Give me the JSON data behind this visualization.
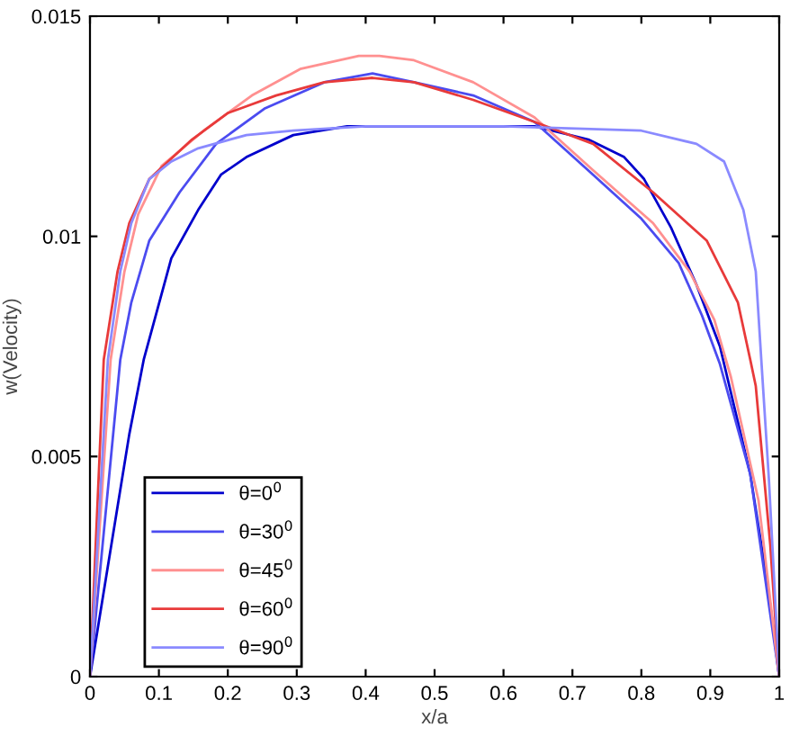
{
  "chart_data": {
    "type": "line",
    "xlabel": "x/a",
    "ylabel": "w(Velocity)",
    "xlim": [
      0,
      1
    ],
    "ylim": [
      0,
      0.015
    ],
    "xticks": [
      0,
      0.1,
      0.2,
      0.3,
      0.4,
      0.5,
      0.6,
      0.7,
      0.8,
      0.9,
      1
    ],
    "yticks": [
      0,
      0.005,
      0.01,
      0.015
    ],
    "grid": false,
    "legend": "bottom left",
    "marker": "none",
    "line_style": "solid",
    "series": [
      {
        "name": "θ=0$^{0}$",
        "color": "#0000cc",
        "x": [
          0,
          0.057,
          0.078,
          0.118,
          0.157,
          0.19,
          0.227,
          0.295,
          0.373,
          0.42,
          0.5,
          0.645,
          0.723,
          0.775,
          0.804,
          0.843,
          0.88,
          0.914,
          0.958,
          0.984,
          1
        ],
        "values": [
          0,
          0.0055,
          0.0072,
          0.0095,
          0.0106,
          0.0114,
          0.0118,
          0.0123,
          0.0125,
          0.0125,
          0.0125,
          0.0125,
          0.0122,
          0.0118,
          0.0113,
          0.0102,
          0.0089,
          0.0075,
          0.0046,
          0.002,
          0
        ]
      },
      {
        "name": "θ=30$^{0}$",
        "color": "#4b4bf0",
        "x": [
          0,
          0.044,
          0.06,
          0.086,
          0.13,
          0.183,
          0.253,
          0.34,
          0.41,
          0.47,
          0.556,
          0.645,
          0.73,
          0.8,
          0.854,
          0.888,
          0.914,
          0.958,
          1
        ],
        "values": [
          0,
          0.0072,
          0.0085,
          0.0099,
          0.011,
          0.0121,
          0.0129,
          0.0135,
          0.0137,
          0.0135,
          0.0132,
          0.0126,
          0.0114,
          0.0104,
          0.0094,
          0.0082,
          0.0071,
          0.0046,
          0
        ]
      },
      {
        "name": "θ=45$^{0}$",
        "color": "#ff9090",
        "x": [
          0,
          0.03,
          0.05,
          0.07,
          0.104,
          0.165,
          0.235,
          0.305,
          0.39,
          0.42,
          0.47,
          0.556,
          0.645,
          0.73,
          0.817,
          0.87,
          0.906,
          0.93,
          0.97,
          1
        ],
        "values": [
          0,
          0.0072,
          0.0092,
          0.0105,
          0.0116,
          0.0124,
          0.0132,
          0.0138,
          0.0141,
          0.0141,
          0.014,
          0.0135,
          0.0127,
          0.0115,
          0.0103,
          0.0092,
          0.0081,
          0.0068,
          0.004,
          0
        ]
      },
      {
        "name": "θ=60$^{0}$",
        "color": "#e83a3a",
        "x": [
          0,
          0.02,
          0.04,
          0.057,
          0.086,
          0.148,
          0.2,
          0.27,
          0.34,
          0.41,
          0.47,
          0.556,
          0.645,
          0.73,
          0.817,
          0.895,
          0.94,
          0.958,
          0.966,
          0.987,
          1
        ],
        "values": [
          0,
          0.0072,
          0.0092,
          0.0103,
          0.0113,
          0.0122,
          0.0128,
          0.0132,
          0.0135,
          0.0136,
          0.0135,
          0.0131,
          0.0126,
          0.0121,
          0.011,
          0.0099,
          0.0085,
          0.0072,
          0.0066,
          0.003,
          0
        ]
      },
      {
        "name": "θ=90$^{0}$",
        "color": "#8a8aff",
        "x": [
          0,
          0.026,
          0.044,
          0.06,
          0.086,
          0.118,
          0.157,
          0.227,
          0.295,
          0.4,
          0.6,
          0.8,
          0.88,
          0.92,
          0.948,
          0.966,
          0.974,
          0.985,
          1
        ],
        "values": [
          0,
          0.0072,
          0.0092,
          0.0103,
          0.0113,
          0.0117,
          0.012,
          0.0123,
          0.0124,
          0.0125,
          0.0125,
          0.0124,
          0.0121,
          0.0117,
          0.0106,
          0.0092,
          0.0072,
          0.0045,
          0
        ]
      }
    ]
  }
}
